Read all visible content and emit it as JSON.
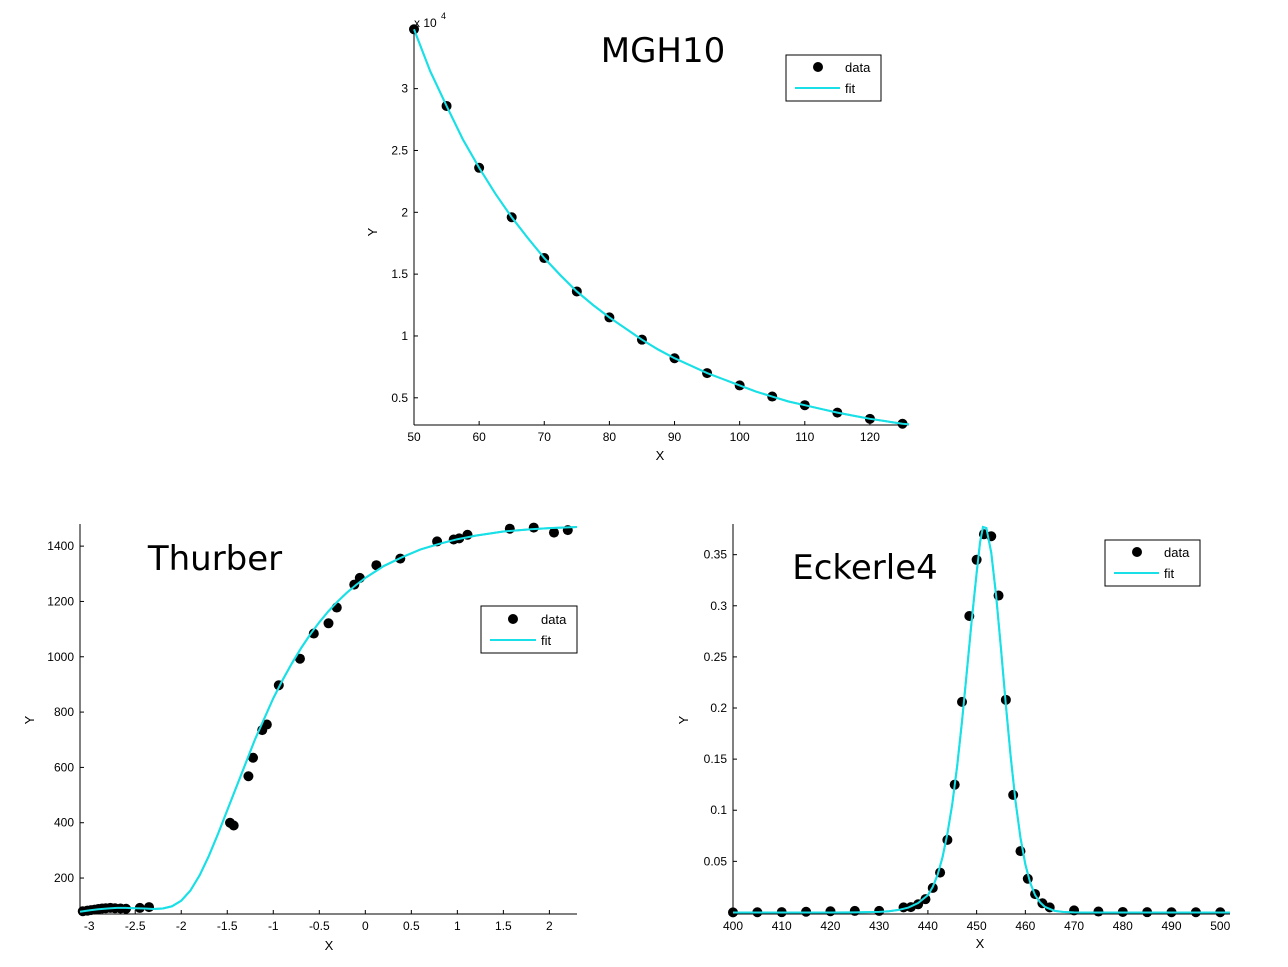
{
  "chart_data": [
    {
      "id": "mgh10",
      "type": "scatter",
      "title": "MGH10",
      "xlabel": "X",
      "ylabel": "Y",
      "xlim": [
        50,
        126
      ],
      "ylim": [
        0.28,
        3.45
      ],
      "y_exponent_label": "x 10",
      "y_exponent_power": "4",
      "xticks": [
        50,
        60,
        70,
        80,
        90,
        100,
        110,
        120
      ],
      "yticks": [
        0.5,
        1,
        1.5,
        2,
        2.5,
        3
      ],
      "xtick_labels": [
        "50",
        "60",
        "70",
        "80",
        "90",
        "100",
        "110",
        "120"
      ],
      "ytick_labels": [
        "0.5",
        "1",
        "1.5",
        "2",
        "2.5",
        "3"
      ],
      "legend": {
        "position": "top-right",
        "entries": [
          "data",
          "fit"
        ]
      },
      "series": [
        {
          "name": "data",
          "kind": "markers",
          "color": "#000000",
          "x": [
            50,
            55,
            60,
            65,
            70,
            75,
            80,
            85,
            90,
            95,
            100,
            105,
            110,
            115,
            120,
            125
          ],
          "y": [
            3.48,
            2.86,
            2.36,
            1.96,
            1.63,
            1.36,
            1.15,
            0.97,
            0.82,
            0.7,
            0.6,
            0.51,
            0.44,
            0.38,
            0.33,
            0.29
          ]
        },
        {
          "name": "fit",
          "kind": "line",
          "color": "#19e0e6",
          "x": [
            50,
            52.5,
            55,
            57.5,
            60,
            62.5,
            65,
            67.5,
            70,
            72.5,
            75,
            77.5,
            80,
            82.5,
            85,
            87.5,
            90,
            92.5,
            95,
            97.5,
            100,
            102.5,
            105,
            107.5,
            110,
            112.5,
            115,
            117.5,
            120,
            122.5,
            125,
            126
          ],
          "y": [
            3.48,
            3.14,
            2.86,
            2.59,
            2.36,
            2.15,
            1.96,
            1.79,
            1.63,
            1.49,
            1.36,
            1.25,
            1.15,
            1.06,
            0.97,
            0.89,
            0.82,
            0.76,
            0.7,
            0.65,
            0.6,
            0.55,
            0.51,
            0.47,
            0.44,
            0.41,
            0.38,
            0.355,
            0.33,
            0.31,
            0.29,
            0.285
          ]
        }
      ]
    },
    {
      "id": "thurber",
      "type": "scatter",
      "title": "Thurber",
      "xlabel": "X",
      "ylabel": "Y",
      "xlim": [
        -3.1,
        2.3
      ],
      "ylim": [
        70,
        1480
      ],
      "xticks": [
        -3,
        -2.5,
        -2,
        -1.5,
        -1,
        -0.5,
        0,
        0.5,
        1,
        1.5,
        2
      ],
      "yticks": [
        200,
        400,
        600,
        800,
        1000,
        1200,
        1400
      ],
      "xtick_labels": [
        "-3",
        "-2.5",
        "-2",
        "-1.5",
        "-1",
        "-0.5",
        "0",
        "0.5",
        "1",
        "1.5",
        "2"
      ],
      "ytick_labels": [
        "200",
        "400",
        "600",
        "800",
        "1000",
        "1200",
        "1400"
      ],
      "legend": {
        "position": "right",
        "entries": [
          "data",
          "fit"
        ]
      },
      "series": [
        {
          "name": "data",
          "kind": "markers",
          "color": "#000000",
          "x": [
            -3.07,
            -3.02,
            -2.98,
            -2.94,
            -2.9,
            -2.86,
            -2.82,
            -2.77,
            -2.72,
            -2.66,
            -2.6,
            -2.45,
            -2.35,
            -1.47,
            -1.43,
            -1.27,
            -1.22,
            -1.12,
            -1.07,
            -0.94,
            -0.71,
            -0.56,
            -0.4,
            -0.31,
            -0.12,
            -0.06,
            0.12,
            0.38,
            0.78,
            0.96,
            1.02,
            1.11,
            1.57,
            1.83,
            2.05,
            2.2
          ],
          "y": [
            80,
            82,
            84,
            86,
            88,
            90,
            91,
            92,
            91,
            90,
            89,
            92,
            95,
            400,
            390,
            568,
            635,
            735,
            755,
            897,
            993,
            1084,
            1121,
            1178,
            1261,
            1285,
            1331,
            1355,
            1417,
            1424,
            1428,
            1441,
            1463,
            1467,
            1449,
            1458
          ]
        },
        {
          "name": "fit",
          "kind": "line",
          "color": "#19e0e6",
          "x": [
            -3.1,
            -3.0,
            -2.9,
            -2.8,
            -2.7,
            -2.6,
            -2.5,
            -2.4,
            -2.3,
            -2.2,
            -2.1,
            -2.0,
            -1.9,
            -1.8,
            -1.7,
            -1.6,
            -1.5,
            -1.4,
            -1.3,
            -1.2,
            -1.1,
            -1.0,
            -0.9,
            -0.8,
            -0.7,
            -0.6,
            -0.5,
            -0.4,
            -0.3,
            -0.2,
            -0.1,
            0.0,
            0.2,
            0.4,
            0.6,
            0.8,
            1.0,
            1.2,
            1.5,
            1.8,
            2.0,
            2.3
          ],
          "y": [
            78,
            83,
            87,
            90,
            92,
            92,
            91,
            90,
            88,
            90,
            98,
            118,
            155,
            210,
            280,
            360,
            445,
            530,
            615,
            700,
            775,
            850,
            915,
            975,
            1030,
            1080,
            1125,
            1165,
            1200,
            1232,
            1260,
            1285,
            1328,
            1360,
            1388,
            1408,
            1425,
            1438,
            1453,
            1461,
            1465,
            1469
          ]
        }
      ]
    },
    {
      "id": "eckerle4",
      "type": "scatter",
      "title": "Eckerle4",
      "xlabel": "X",
      "ylabel": "Y",
      "xlim": [
        400,
        502
      ],
      "ylim": [
        -0.0015,
        0.38
      ],
      "xticks": [
        400,
        410,
        420,
        430,
        440,
        450,
        460,
        470,
        480,
        490,
        500
      ],
      "yticks": [
        0.05,
        0.1,
        0.15,
        0.2,
        0.25,
        0.3,
        0.35
      ],
      "xtick_labels": [
        "400",
        "410",
        "420",
        "430",
        "440",
        "450",
        "460",
        "470",
        "480",
        "490",
        "500"
      ],
      "ytick_labels": [
        "0.05",
        "0.1",
        "0.15",
        "0.2",
        "0.25",
        "0.3",
        "0.35"
      ],
      "legend": {
        "position": "top-right",
        "entries": [
          "data",
          "fit"
        ]
      },
      "series": [
        {
          "name": "data",
          "kind": "markers",
          "color": "#000000",
          "x": [
            400,
            405,
            410,
            415,
            420,
            425,
            430,
            435,
            436.5,
            438,
            439.5,
            441,
            442.5,
            444,
            445.5,
            447,
            448.5,
            450,
            451.5,
            453,
            454.5,
            456,
            457.5,
            459,
            460.5,
            462,
            463.5,
            465,
            470,
            475,
            480,
            485,
            490,
            495,
            500
          ],
          "y": [
            0.0001,
            0.0002,
            0.0003,
            0.0007,
            0.0012,
            0.0015,
            0.0015,
            0.005,
            0.0052,
            0.008,
            0.013,
            0.024,
            0.039,
            0.071,
            0.125,
            0.206,
            0.29,
            0.345,
            0.37,
            0.368,
            0.31,
            0.208,
            0.115,
            0.06,
            0.033,
            0.018,
            0.009,
            0.005,
            0.002,
            0.0009,
            0.0005,
            0.0003,
            0.0002,
            0.0002,
            0.0002
          ]
        },
        {
          "name": "fit",
          "kind": "line",
          "color": "#19e0e6",
          "x": [
            400,
            410,
            420,
            425,
            430,
            432,
            434,
            436,
            438,
            440,
            441,
            442,
            443,
            444,
            445,
            446,
            447,
            448,
            449,
            450,
            450.7,
            451.3,
            452,
            453,
            454,
            455,
            456,
            457,
            458,
            459,
            460,
            461,
            462,
            463,
            464,
            466,
            468,
            470,
            475,
            480,
            490,
            502
          ],
          "y": [
            0,
            0,
            0,
            0.0001,
            0.0006,
            0.0012,
            0.0025,
            0.0048,
            0.0092,
            0.017,
            0.025,
            0.037,
            0.054,
            0.077,
            0.106,
            0.143,
            0.187,
            0.236,
            0.286,
            0.332,
            0.362,
            0.377,
            0.376,
            0.352,
            0.31,
            0.258,
            0.203,
            0.152,
            0.108,
            0.073,
            0.047,
            0.029,
            0.017,
            0.01,
            0.0055,
            0.0015,
            0.0004,
            0.0001,
            0,
            0,
            0,
            0
          ]
        }
      ]
    }
  ]
}
